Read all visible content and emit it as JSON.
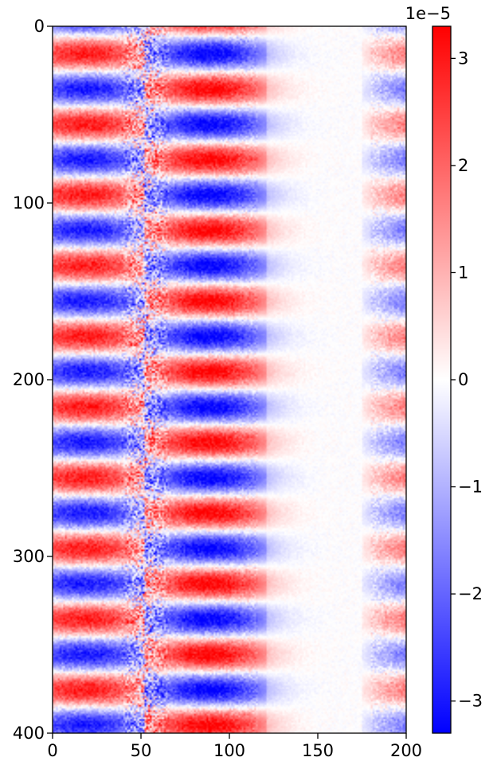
{
  "chart_data": {
    "type": "heatmap",
    "title": "",
    "xlabel": "",
    "ylabel": "",
    "xlim": [
      0,
      200
    ],
    "ylim": [
      400,
      0
    ],
    "x_ticks": [
      0,
      50,
      100,
      150,
      200
    ],
    "y_ticks": [
      0,
      100,
      200,
      300,
      400
    ],
    "colormap": "bwr",
    "colorbar": {
      "range": [
        -3.3,
        3.3
      ],
      "ticks": [
        -3,
        -2,
        -1,
        0,
        1,
        2,
        3
      ],
      "exponent_label": "1e−5",
      "colors": [
        "#0000ff",
        "#ffffff",
        "#ff0000"
      ]
    },
    "pattern": {
      "band_period_rows": 40,
      "phase_shift_columns": 60,
      "amplitude_peak": 3.2,
      "noisy_column_center": 52,
      "faded_column_range": [
        120,
        170
      ]
    }
  }
}
